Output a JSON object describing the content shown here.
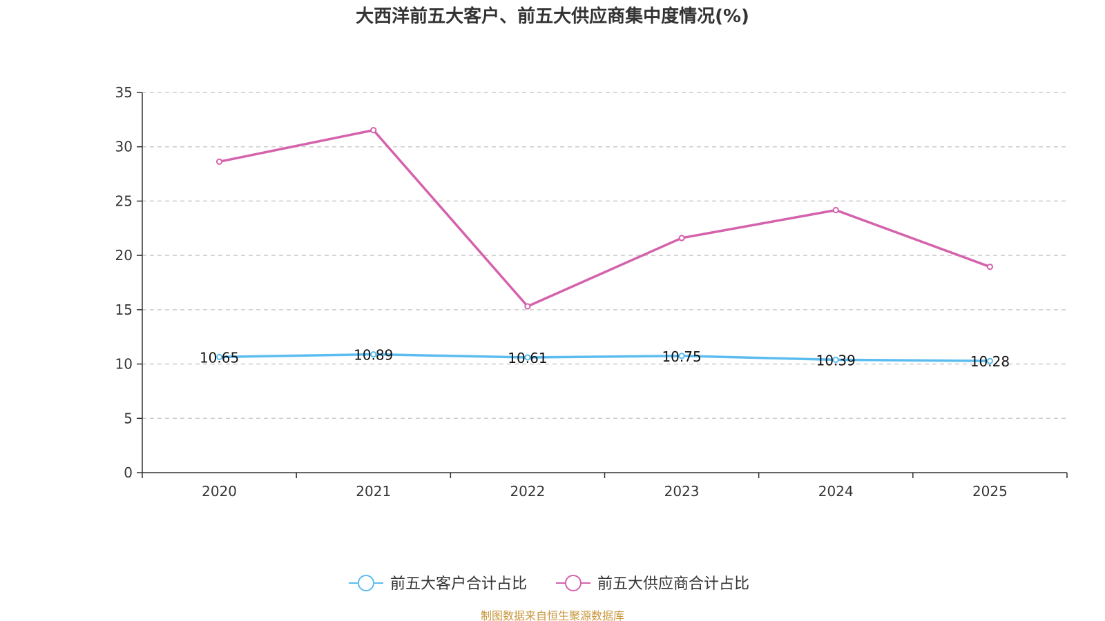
{
  "source_text": "制图数据来自恒生聚源数据库",
  "colors": {
    "customers": "#5bbcf0",
    "suppliers": "#d462ac",
    "axis": "#333333",
    "grid": "#cccccc",
    "source": "#c8963c"
  },
  "chart_data": {
    "type": "line",
    "title": "大西洋前五大客户、前五大供应商集中度情况(%)",
    "categories": [
      "2020",
      "2021",
      "2022",
      "2023",
      "2024",
      "2025"
    ],
    "ylim": [
      0,
      35
    ],
    "yticks": [
      0,
      5,
      10,
      15,
      20,
      25,
      30,
      35
    ],
    "grid": true,
    "legend_position": "bottom-center",
    "series": [
      {
        "name": "前五大客户合计占比",
        "values": [
          10.65,
          10.89,
          10.61,
          10.75,
          10.39,
          10.28
        ],
        "labels": [
          "10.65",
          "10.89",
          "10.61",
          "10.75",
          "10.39",
          "10.28"
        ]
      },
      {
        "name": "前五大供应商合计占比",
        "values": [
          28.63,
          31.53,
          15.31,
          21.6,
          24.17,
          18.95
        ]
      }
    ]
  }
}
